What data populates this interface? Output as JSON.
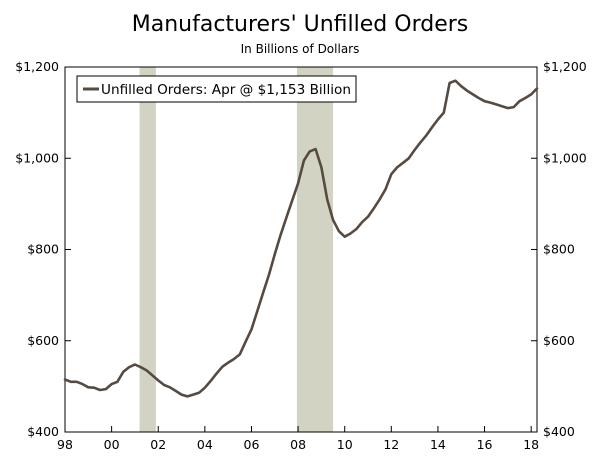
{
  "chart_data": {
    "type": "line",
    "title": "Manufacturers' Unfilled Orders",
    "subtitle": "In Billions of Dollars",
    "xlabel": "",
    "ylabel": "",
    "xlim": [
      1998.0,
      2018.25
    ],
    "ylim": [
      400,
      1200
    ],
    "x_tick_labels": [
      "98",
      "00",
      "02",
      "04",
      "06",
      "08",
      "10",
      "12",
      "14",
      "16",
      "18"
    ],
    "x_tick_values": [
      1998,
      2000,
      2002,
      2004,
      2006,
      2008,
      2010,
      2012,
      2014,
      2016,
      2018
    ],
    "y_tick_labels": [
      "$400",
      "$600",
      "$800",
      "$1,000",
      "$1,200"
    ],
    "y_tick_values": [
      400,
      600,
      800,
      1000,
      1200
    ],
    "grid": false,
    "legend": {
      "placement": "top-left",
      "entries": [
        "Unfilled Orders: Apr @ $1,153 Billion"
      ]
    },
    "recessions": [
      [
        2001.2,
        2001.9
      ],
      [
        2007.95,
        2009.5
      ]
    ],
    "line_color": "#574a40",
    "recession_color": "#d3d3c4",
    "series": [
      {
        "name": "Unfilled Orders: Apr @ $1,153 Billion",
        "points": [
          [
            1998.0,
            515
          ],
          [
            1998.25,
            510
          ],
          [
            1998.5,
            510
          ],
          [
            1998.75,
            505
          ],
          [
            1999.0,
            498
          ],
          [
            1999.25,
            497
          ],
          [
            1999.5,
            492
          ],
          [
            1999.75,
            494
          ],
          [
            2000.0,
            505
          ],
          [
            2000.25,
            510
          ],
          [
            2000.5,
            532
          ],
          [
            2000.75,
            542
          ],
          [
            2001.0,
            548
          ],
          [
            2001.25,
            542
          ],
          [
            2001.5,
            535
          ],
          [
            2001.75,
            524
          ],
          [
            2002.0,
            513
          ],
          [
            2002.25,
            503
          ],
          [
            2002.5,
            498
          ],
          [
            2002.75,
            490
          ],
          [
            2003.0,
            482
          ],
          [
            2003.25,
            478
          ],
          [
            2003.5,
            482
          ],
          [
            2003.75,
            486
          ],
          [
            2004.0,
            497
          ],
          [
            2004.25,
            512
          ],
          [
            2004.5,
            528
          ],
          [
            2004.75,
            543
          ],
          [
            2005.0,
            552
          ],
          [
            2005.25,
            560
          ],
          [
            2005.5,
            570
          ],
          [
            2005.75,
            598
          ],
          [
            2006.0,
            625
          ],
          [
            2006.25,
            665
          ],
          [
            2006.5,
            705
          ],
          [
            2006.75,
            745
          ],
          [
            2007.0,
            790
          ],
          [
            2007.25,
            832
          ],
          [
            2007.5,
            870
          ],
          [
            2007.75,
            908
          ],
          [
            2008.0,
            945
          ],
          [
            2008.25,
            995
          ],
          [
            2008.5,
            1015
          ],
          [
            2008.75,
            1020
          ],
          [
            2009.0,
            980
          ],
          [
            2009.25,
            910
          ],
          [
            2009.5,
            865
          ],
          [
            2009.75,
            840
          ],
          [
            2010.0,
            828
          ],
          [
            2010.25,
            835
          ],
          [
            2010.5,
            845
          ],
          [
            2010.75,
            860
          ],
          [
            2011.0,
            872
          ],
          [
            2011.25,
            890
          ],
          [
            2011.5,
            910
          ],
          [
            2011.75,
            932
          ],
          [
            2012.0,
            965
          ],
          [
            2012.25,
            980
          ],
          [
            2012.5,
            990
          ],
          [
            2012.75,
            1000
          ],
          [
            2013.0,
            1018
          ],
          [
            2013.25,
            1035
          ],
          [
            2013.5,
            1050
          ],
          [
            2013.75,
            1068
          ],
          [
            2014.0,
            1085
          ],
          [
            2014.25,
            1100
          ],
          [
            2014.5,
            1165
          ],
          [
            2014.75,
            1170
          ],
          [
            2015.0,
            1158
          ],
          [
            2015.25,
            1148
          ],
          [
            2015.5,
            1140
          ],
          [
            2015.75,
            1132
          ],
          [
            2016.0,
            1125
          ],
          [
            2016.25,
            1122
          ],
          [
            2016.5,
            1118
          ],
          [
            2016.75,
            1114
          ],
          [
            2017.0,
            1110
          ],
          [
            2017.25,
            1112
          ],
          [
            2017.5,
            1125
          ],
          [
            2017.75,
            1132
          ],
          [
            2018.0,
            1140
          ],
          [
            2018.25,
            1153
          ]
        ]
      }
    ]
  }
}
